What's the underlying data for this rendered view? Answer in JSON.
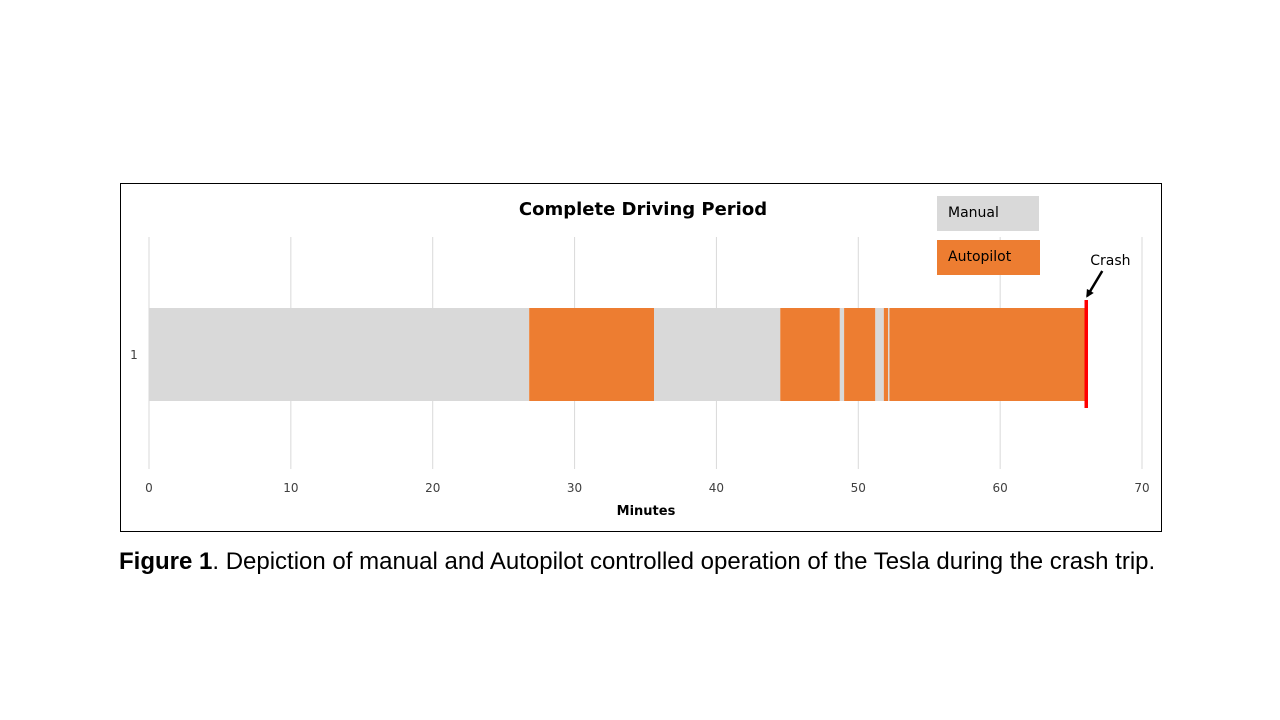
{
  "chart_data": {
    "type": "bar",
    "orientation": "horizontal",
    "stacked": true,
    "title": "Complete Driving Period",
    "xlabel": "Minutes",
    "ylabel": "",
    "categories": [
      "1"
    ],
    "xlim": [
      0,
      70
    ],
    "xticks": [
      "0",
      "10",
      "20",
      "30",
      "40",
      "50",
      "60",
      "70"
    ],
    "grid": true,
    "legend_position": "top-right",
    "legend": [
      {
        "label": "Manual",
        "color": "#d9d9d9"
      },
      {
        "label": "Autopilot",
        "color": "#ed7d31"
      }
    ],
    "segments": [
      {
        "mode": "Manual",
        "start": 0,
        "end": 26.8
      },
      {
        "mode": "Autopilot",
        "start": 26.8,
        "end": 35.6
      },
      {
        "mode": "Manual",
        "start": 35.6,
        "end": 44.5
      },
      {
        "mode": "Autopilot",
        "start": 44.5,
        "end": 48.7
      },
      {
        "mode": "Manual",
        "start": 48.7,
        "end": 49.0
      },
      {
        "mode": "Autopilot",
        "start": 49.0,
        "end": 51.2
      },
      {
        "mode": "Manual",
        "start": 51.2,
        "end": 51.8
      },
      {
        "mode": "Autopilot",
        "start": 51.8,
        "end": 52.1
      },
      {
        "mode": "Manual",
        "start": 52.1,
        "end": 52.2
      },
      {
        "mode": "Autopilot",
        "start": 52.2,
        "end": 66.0
      }
    ],
    "annotation": {
      "label": "Crash",
      "x": 66.0,
      "color": "#ff0000"
    }
  },
  "caption": {
    "figure_label": "Figure 1",
    "text": ". Depiction of manual and Autopilot controlled operation of the Tesla during the crash trip."
  }
}
